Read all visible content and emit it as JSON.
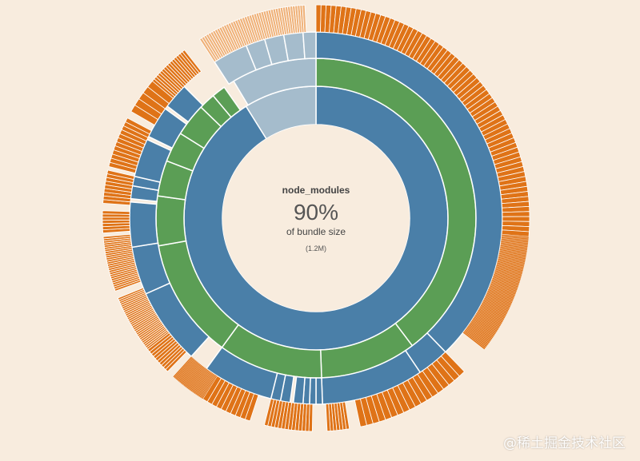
{
  "colors": {
    "background": "#f8ecde",
    "ring1": "#4a7fa8",
    "ring2": "#5b9e55",
    "ring3": "#4a7fa8",
    "leaf": "#df7317",
    "leafLight": "#efb27a",
    "other": "#a5bccc"
  },
  "center": {
    "title": "node_modules",
    "percent": "90%",
    "subtitle": "of bundle size",
    "size": "(1.2M)"
  },
  "watermark": "@稀土掘金技术社区",
  "chart_data": {
    "type": "sunburst",
    "title": "node_modules",
    "share_of_bundle_percent": 90,
    "total_size": "1.2M",
    "rings": [
      {
        "level": 1,
        "slices": [
          {
            "kind": "main",
            "start": 0,
            "end": 328
          },
          {
            "kind": "other",
            "start": 328,
            "end": 360
          }
        ]
      },
      {
        "level": 2,
        "slices": [
          {
            "kind": "main",
            "start": 0,
            "end": 143
          },
          {
            "kind": "main",
            "start": 143,
            "end": 178
          },
          {
            "kind": "main",
            "start": 178,
            "end": 216
          },
          {
            "kind": "main",
            "start": 216,
            "end": 260
          },
          {
            "kind": "main",
            "start": 260,
            "end": 278
          },
          {
            "kind": "main",
            "start": 278,
            "end": 291
          },
          {
            "kind": "main",
            "start": 291,
            "end": 302
          },
          {
            "kind": "main",
            "start": 302,
            "end": 314
          },
          {
            "kind": "main",
            "start": 314,
            "end": 320
          },
          {
            "kind": "main",
            "start": 320,
            "end": 325
          },
          {
            "kind": "other",
            "start": 329,
            "end": 360
          }
        ]
      },
      {
        "level": 3,
        "slices": [
          {
            "kind": "main",
            "start": 0,
            "end": 136
          },
          {
            "kind": "main",
            "start": 136,
            "end": 146
          },
          {
            "kind": "main",
            "start": 146,
            "end": 178
          },
          {
            "kind": "main",
            "start": 178,
            "end": 180
          },
          {
            "kind": "main",
            "start": 180,
            "end": 182
          },
          {
            "kind": "main",
            "start": 182,
            "end": 184
          },
          {
            "kind": "main",
            "start": 184,
            "end": 187
          },
          {
            "kind": "main",
            "start": 188,
            "end": 191
          },
          {
            "kind": "main",
            "start": 191,
            "end": 194
          },
          {
            "kind": "main",
            "start": 194,
            "end": 216
          },
          {
            "kind": "main",
            "start": 222,
            "end": 246
          },
          {
            "kind": "main",
            "start": 246,
            "end": 261
          },
          {
            "kind": "main",
            "start": 261,
            "end": 275
          },
          {
            "kind": "main",
            "start": 276,
            "end": 280
          },
          {
            "kind": "main",
            "start": 280,
            "end": 283
          },
          {
            "kind": "main",
            "start": 283,
            "end": 295
          },
          {
            "kind": "main",
            "start": 296,
            "end": 306
          },
          {
            "kind": "main",
            "start": 307,
            "end": 315
          },
          {
            "kind": "other",
            "start": 327,
            "end": 338
          },
          {
            "kind": "other",
            "start": 338,
            "end": 344
          },
          {
            "kind": "other",
            "start": 344,
            "end": 350
          },
          {
            "kind": "other",
            "start": 350,
            "end": 356
          },
          {
            "kind": "other",
            "start": 356,
            "end": 360
          }
        ]
      },
      {
        "level": 4,
        "leaf_ranges": [
          {
            "start": 0,
            "end": 95,
            "count": 70
          },
          {
            "start": 95,
            "end": 128,
            "count": 80
          },
          {
            "start": 136,
            "end": 147,
            "count": 6
          },
          {
            "start": 147,
            "end": 168,
            "count": 12
          },
          {
            "start": 171,
            "end": 177,
            "count": 7
          },
          {
            "start": 181,
            "end": 194,
            "count": 14
          },
          {
            "start": 198,
            "end": 212,
            "count": 10
          },
          {
            "start": 212,
            "end": 222,
            "count": 28
          },
          {
            "start": 224,
            "end": 232,
            "count": 10
          },
          {
            "start": 232,
            "end": 248,
            "count": 30
          },
          {
            "start": 250,
            "end": 265,
            "count": 26
          },
          {
            "start": 266,
            "end": 272,
            "count": 7
          },
          {
            "start": 274,
            "end": 283,
            "count": 9
          },
          {
            "start": 284,
            "end": 298,
            "count": 12
          },
          {
            "start": 300,
            "end": 310,
            "count": 5
          },
          {
            "start": 310,
            "end": 322,
            "count": 16
          }
        ],
        "light_leaf_ranges": [
          {
            "start": 327,
            "end": 357,
            "count": 45
          }
        ]
      }
    ]
  }
}
